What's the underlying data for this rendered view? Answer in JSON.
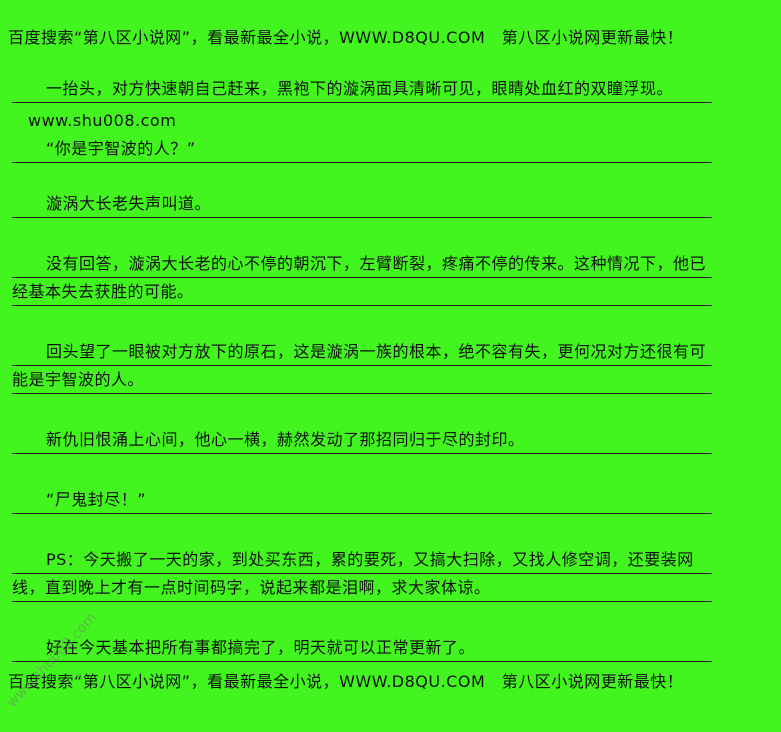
{
  "page": {
    "background_color": "#42f51e",
    "text_color": "#111111",
    "rule_color": "#1e1e1e"
  },
  "banner_top": {
    "text": "百度搜索“第八区小说网”，看最新最全小说，WWW.D8QU.COM　第八区小说网更新最快！"
  },
  "banner_bottom": {
    "text": "百度搜索“第八区小说网”，看最新最全小说，WWW.D8QU.COM　第八区小说网更新最快！"
  },
  "watermark": {
    "text": "www.shu008.com"
  },
  "content": {
    "paragraphs": [
      {
        "name": "novel-paragraph",
        "ruled": true,
        "indent": true,
        "text": "一抬头，对方快速朝自己赶来，黑袍下的漩涡面具清晰可见，眼睛处血红的双瞳浮现。"
      },
      {
        "name": "site-url-line",
        "ruled": false,
        "indent": false,
        "text": "www.shu008.com"
      },
      {
        "name": "novel-paragraph",
        "ruled": true,
        "indent": true,
        "text": "“你是宇智波的人？”"
      },
      {
        "name": "novel-paragraph",
        "ruled": true,
        "indent": true,
        "text": "漩涡大长老失声叫道。"
      },
      {
        "name": "novel-paragraph",
        "ruled": true,
        "indent": true,
        "text": "没有回答，漩涡大长老的心不停的朝沉下，左臂断裂，疼痛不停的传来。这种情况下，他已经基本失去获胜的可能。"
      },
      {
        "name": "novel-paragraph",
        "ruled": true,
        "indent": true,
        "text": "回头望了一眼被对方放下的原石，这是漩涡一族的根本，绝不容有失，更何况对方还很有可能是宇智波的人。"
      },
      {
        "name": "novel-paragraph",
        "ruled": true,
        "indent": true,
        "text": "新仇旧恨涌上心间，他心一横，赫然发动了那招同归于尽的封印。"
      },
      {
        "name": "novel-paragraph",
        "ruled": true,
        "indent": true,
        "text": "“尸鬼封尽！”"
      },
      {
        "name": "novel-paragraph",
        "ruled": true,
        "indent": true,
        "text": "PS：今天搬了一天的家，到处买东西，累的要死，又搞大扫除，又找人修空调，还要装网线，直到晚上才有一点时间码字，说起来都是泪啊，求大家体谅。"
      },
      {
        "name": "novel-paragraph",
        "ruled": true,
        "indent": true,
        "text": "好在今天基本把所有事都搞完了，明天就可以正常更新了。"
      }
    ]
  }
}
